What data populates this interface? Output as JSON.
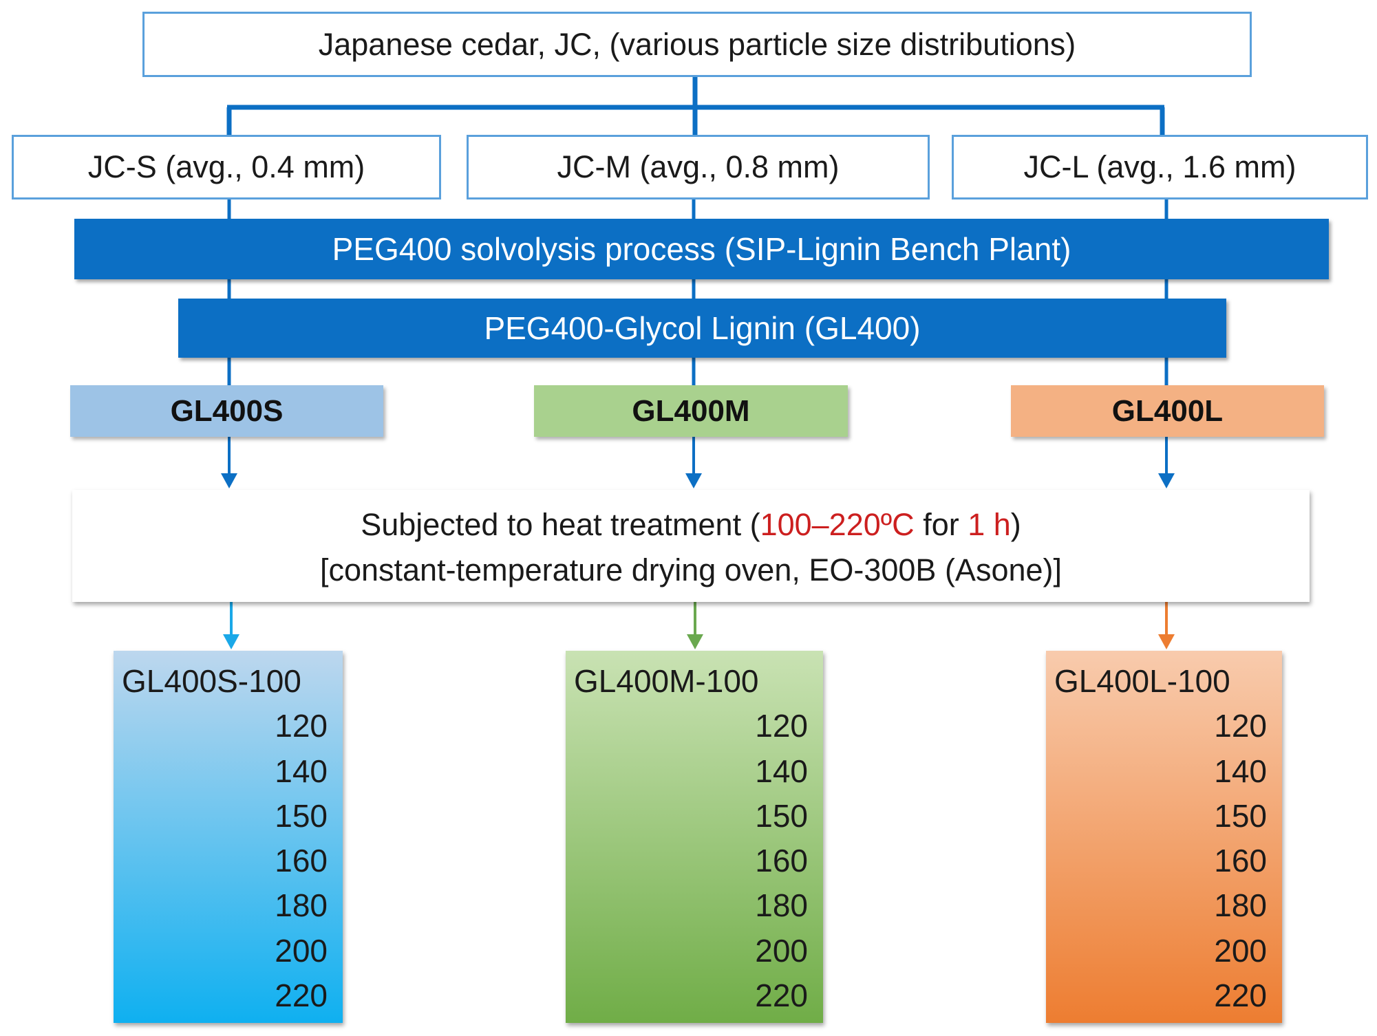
{
  "source": {
    "label": "Japanese cedar, JC, (various particle size distributions)"
  },
  "fractions": [
    {
      "label": "JC-S (avg., 0.4 mm)"
    },
    {
      "label": "JC-M (avg., 0.8 mm)"
    },
    {
      "label": "JC-L (avg., 1.6 mm)"
    }
  ],
  "process": {
    "label": "PEG400 solvolysis process (SIP-Lignin Bench Plant)"
  },
  "product": {
    "label": "PEG400-Glycol Lignin (GL400)"
  },
  "samples": [
    {
      "label": "GL400S",
      "color": "#9dc3e6"
    },
    {
      "label": "GL400M",
      "color": "#a9d18e"
    },
    {
      "label": "GL400L",
      "color": "#f4b183"
    }
  ],
  "heat_treatment": {
    "line1_a": "Subjected to heat treatment (",
    "temp_range": "100–220ºC",
    "line1_b": " for ",
    "duration": "1 h",
    "line1_c": ")",
    "line2": "[constant-temperature drying oven, EO-300B (Asone)]"
  },
  "results": [
    {
      "first": "GL400S-100",
      "temps": [
        "120",
        "140",
        "150",
        "160",
        "180",
        "200",
        "220"
      ],
      "gradient": [
        "#bdd7ee",
        "#0fb0f0"
      ],
      "arrow_color": "#1aa8e8"
    },
    {
      "first": "GL400M-100",
      "temps": [
        "120",
        "140",
        "150",
        "160",
        "180",
        "200",
        "220"
      ],
      "gradient": [
        "#c9e2b3",
        "#70ad47"
      ],
      "arrow_color": "#6aa84f"
    },
    {
      "first": "GL400L-100",
      "temps": [
        "120",
        "140",
        "150",
        "160",
        "180",
        "200",
        "220"
      ],
      "gradient": [
        "#f8cbad",
        "#ed7d31"
      ],
      "arrow_color": "#ed7d31"
    }
  ],
  "colors": {
    "connector": "#0c6fc4",
    "highlight_text": "#cc1f1f"
  }
}
